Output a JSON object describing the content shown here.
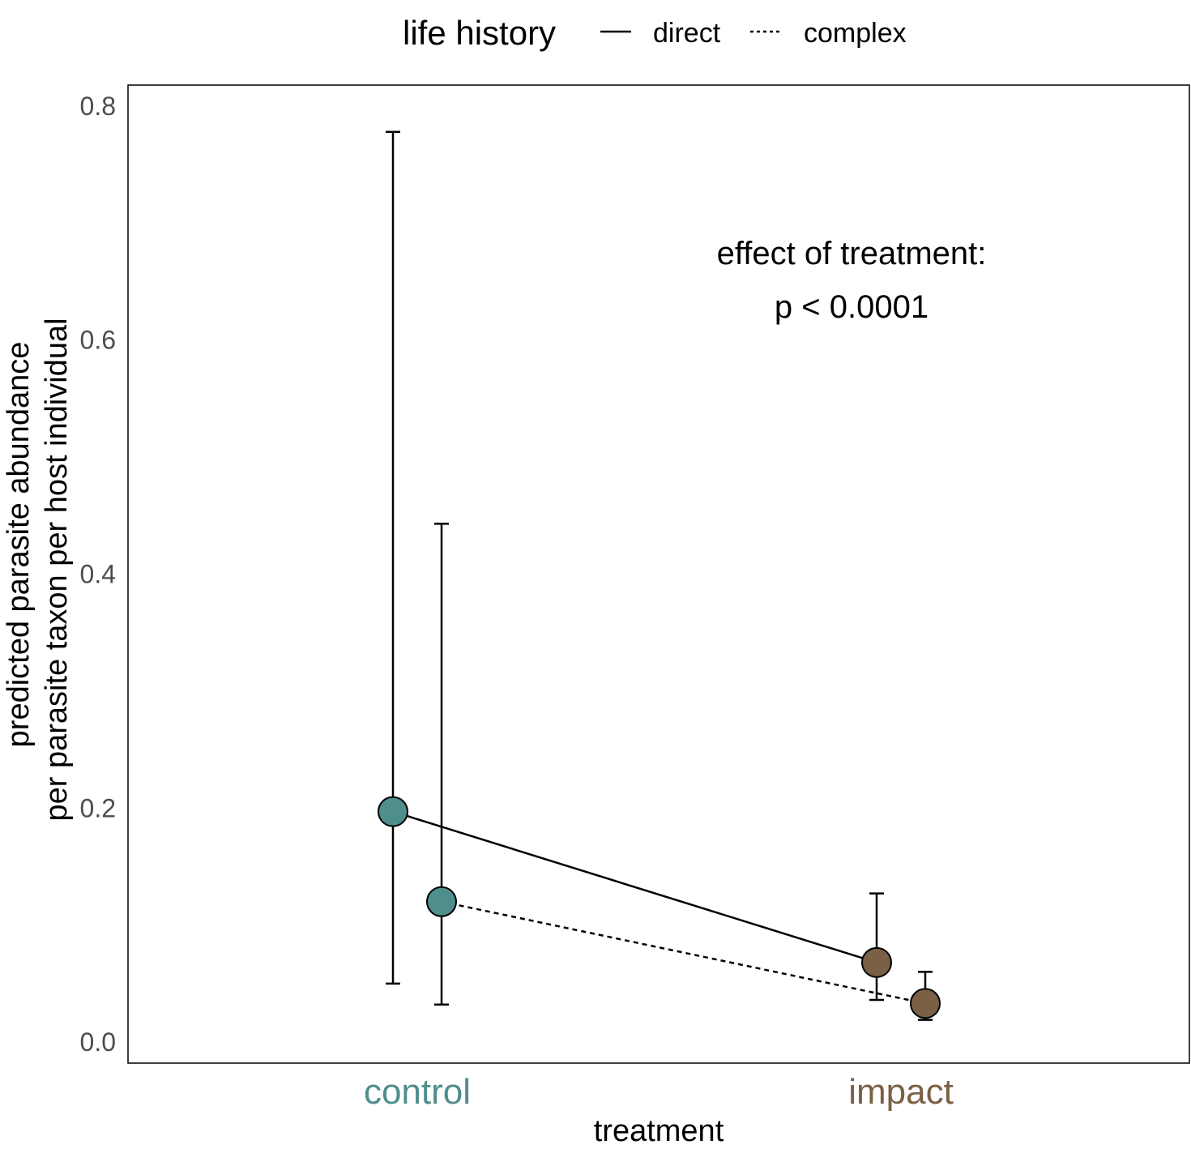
{
  "chart_data": {
    "type": "scatter",
    "title": "",
    "xlabel": "treatment",
    "ylabel": [
      "predicted parasite abundance",
      "per parasite taxon per host individual"
    ],
    "ylim": [
      -0.018,
      0.818
    ],
    "yticks": [
      "0.0",
      "0.2",
      "0.4",
      "0.6",
      "0.8"
    ],
    "ytick_values": [
      0,
      0.2,
      0.4,
      0.6,
      0.8
    ],
    "categories": [
      "control",
      "impact"
    ],
    "category_colors": {
      "control": "#4e8e8c",
      "impact": "#7a6045"
    },
    "grid": false,
    "legend": {
      "title": "life history",
      "position": "top",
      "entries": [
        {
          "label": "direct",
          "linestyle": "solid"
        },
        {
          "label": "complex",
          "linestyle": "dotted"
        }
      ]
    },
    "series": [
      {
        "name": "direct",
        "linestyle": "solid",
        "points": [
          {
            "x": "control",
            "y": 0.197,
            "lower": 0.05,
            "upper": 0.778
          },
          {
            "x": "impact",
            "y": 0.068,
            "lower": 0.036,
            "upper": 0.127
          }
        ]
      },
      {
        "name": "complex",
        "linestyle": "dotted",
        "points": [
          {
            "x": "control",
            "y": 0.12,
            "lower": 0.032,
            "upper": 0.443
          },
          {
            "x": "impact",
            "y": 0.033,
            "lower": 0.019,
            "upper": 0.06
          }
        ]
      }
    ],
    "annotations": [
      "effect of treatment:",
      "p < 0.0001"
    ]
  }
}
